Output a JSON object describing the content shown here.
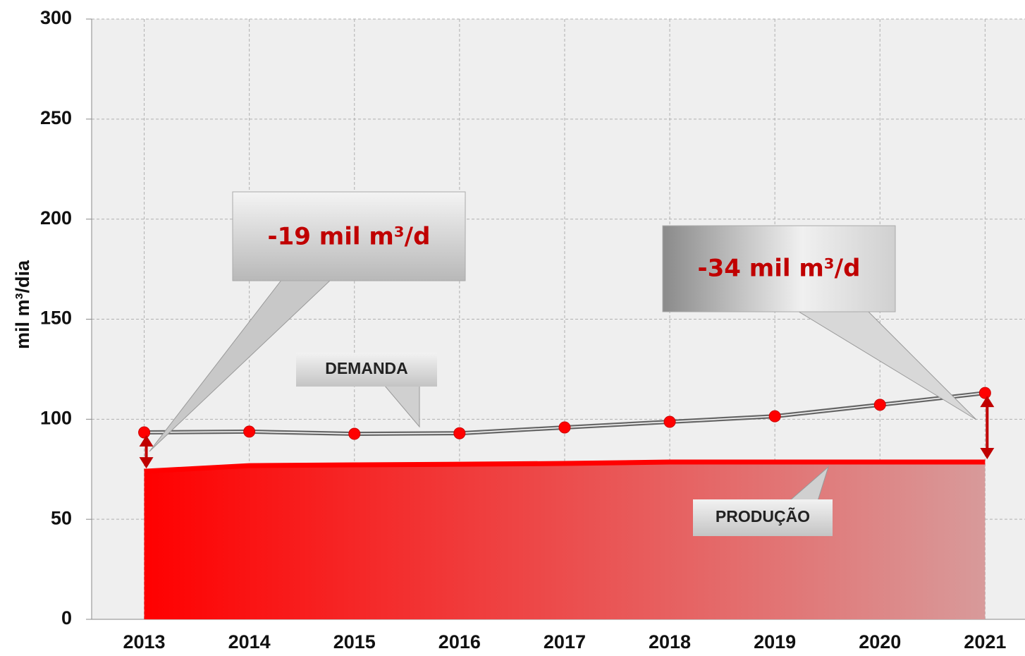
{
  "chart_data": {
    "type": "line",
    "ylabel": "mil m³/dia",
    "categories": [
      "2013",
      "2014",
      "2015",
      "2016",
      "2017",
      "2018",
      "2019",
      "2020",
      "2021"
    ],
    "series": [
      {
        "name": "DEMANDA",
        "color": "#666666",
        "marker_color": "#ff0000",
        "values": [
          93.4,
          93.8,
          92.7,
          93,
          95.9,
          98.7,
          101.5,
          107.2,
          113.1
        ]
      },
      {
        "name": "PRODUÇÃO",
        "color": "#ff0000",
        "fill": true,
        "values": [
          74,
          76.8,
          77.2,
          77.5,
          77.9,
          78.6,
          78.6,
          78.6,
          78.6
        ]
      }
    ],
    "annotations": [
      "-19 mil m³/d",
      "-34 mil m³/d"
    ],
    "ylim": [
      0,
      300
    ],
    "yticks": [
      0,
      50,
      100,
      150,
      200,
      250,
      300
    ],
    "grid": true
  }
}
